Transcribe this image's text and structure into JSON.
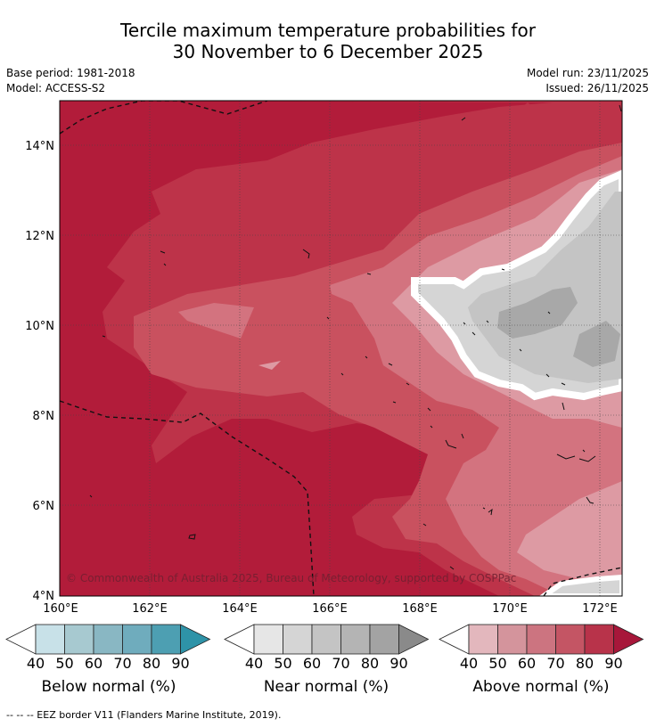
{
  "title": {
    "line1": "Tercile maximum temperature probabilities for",
    "line2": "30 November to 6 December 2025"
  },
  "meta": {
    "base_period": "Base period: 1981-2018",
    "model": "Model: ACCESS-S2",
    "model_run": "Model run: 23/11/2025",
    "issued": "Issued: 26/11/2025"
  },
  "map": {
    "lat_labels": [
      "14°N",
      "12°N",
      "10°N",
      "8°N",
      "6°N",
      "4°N"
    ],
    "lon_labels": [
      "160°E",
      "162°E",
      "164°E",
      "166°E",
      "168°E",
      "170°E",
      "172°E"
    ],
    "copyright": "© Commonwealth of Australia 2025, Bureau of Meteorology, supported by COSPPac",
    "colors": {
      "above_70": "#c9515f",
      "above_80": "#bd3349",
      "above_90": "#b21c3a",
      "above_60": "#d3737f",
      "above_50": "#dd9aa3",
      "near_50": "#d5d5d5",
      "near_60": "#c4c4c4",
      "near_80": "#a8a8a8"
    }
  },
  "colorbars": [
    {
      "label": "Below normal (%)",
      "ticks": [
        "40",
        "50",
        "60",
        "70",
        "80",
        "90"
      ],
      "colors": [
        "#c8e1e8",
        "#a7c9d0",
        "#89b7c3",
        "#6facbd",
        "#4d9fb2",
        "#2e93a8"
      ]
    },
    {
      "label": "Near normal (%)",
      "ticks": [
        "40",
        "50",
        "60",
        "70",
        "80",
        "90"
      ],
      "colors": [
        "#e6e6e6",
        "#d5d5d5",
        "#c4c4c4",
        "#b4b4b4",
        "#a3a3a3",
        "#8a8a8a"
      ]
    },
    {
      "label": "Above normal (%)",
      "ticks": [
        "40",
        "50",
        "60",
        "70",
        "80",
        "90"
      ],
      "colors": [
        "#e3b7bd",
        "#d4949c",
        "#cc7480",
        "#c45564",
        "#b8334a",
        "#a7173a"
      ]
    }
  ],
  "footer": "--  --  -- EEZ border V11 (Flanders Marine Institute, 2019)."
}
